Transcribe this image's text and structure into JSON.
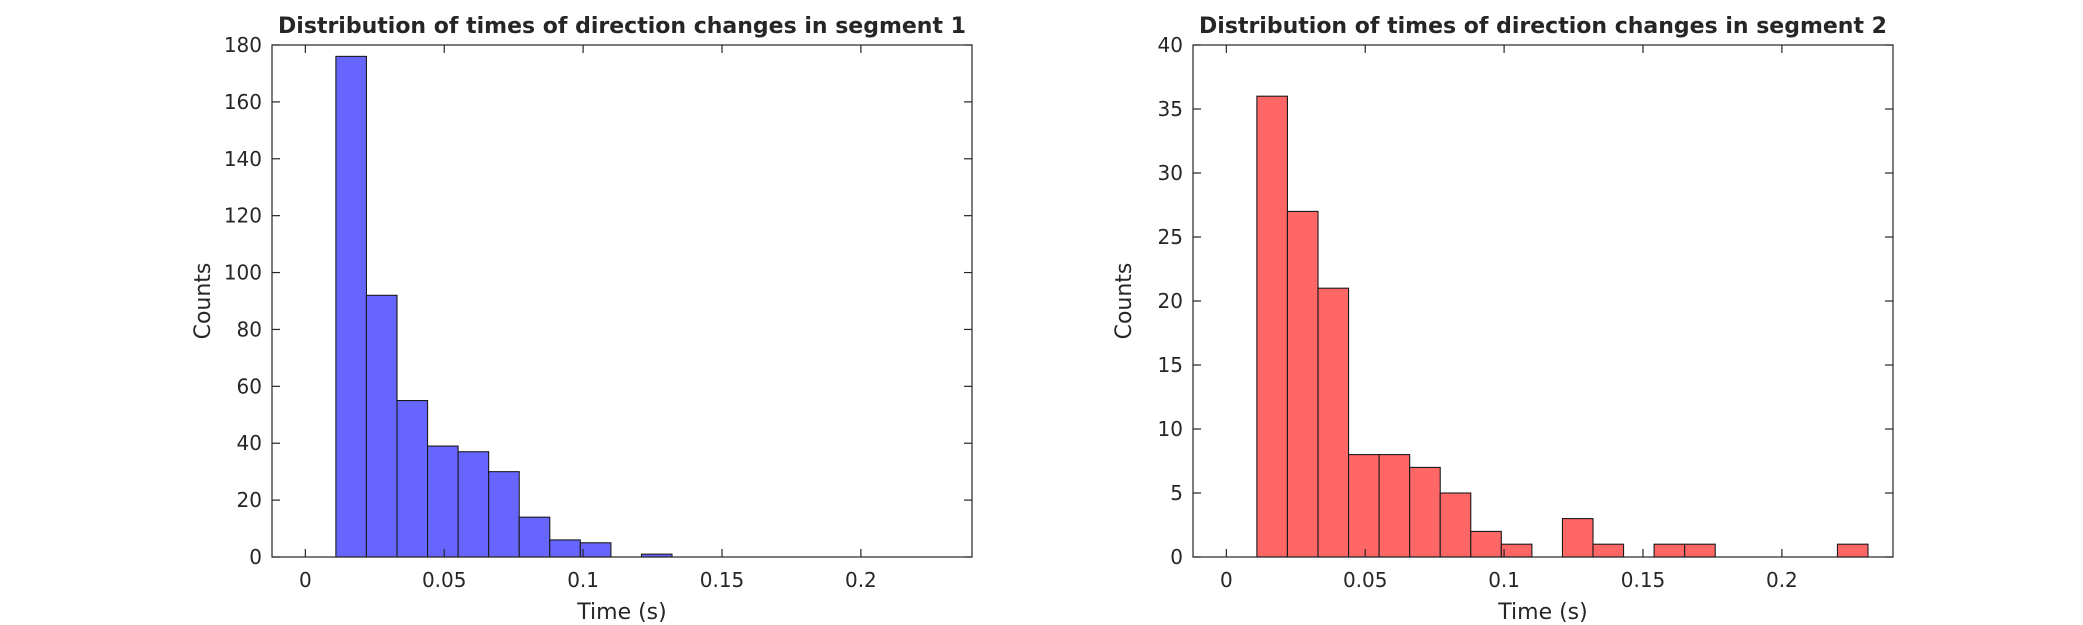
{
  "chart_data": [
    {
      "type": "bar",
      "title": "Distribution of times of direction changes in segment 1",
      "xlabel": "Time (s)",
      "ylabel": "Counts",
      "xlim": [
        -0.012,
        0.24
      ],
      "ylim": [
        0,
        180
      ],
      "xticks": [
        0,
        0.05,
        0.1,
        0.15,
        0.2
      ],
      "xtick_labels": [
        "0",
        "0.05",
        "0.1",
        "0.15",
        "0.2"
      ],
      "yticks": [
        0,
        20,
        40,
        60,
        80,
        100,
        120,
        140,
        160,
        180
      ],
      "ytick_labels": [
        "0",
        "20",
        "40",
        "60",
        "80",
        "100",
        "120",
        "140",
        "160",
        "180"
      ],
      "color": "#6666ff",
      "grid": false,
      "bin_width": 0.011,
      "bins": [
        {
          "x0": 0.011,
          "value": 176
        },
        {
          "x0": 0.022,
          "value": 92
        },
        {
          "x0": 0.033,
          "value": 55
        },
        {
          "x0": 0.044,
          "value": 39
        },
        {
          "x0": 0.055,
          "value": 37
        },
        {
          "x0": 0.066,
          "value": 30
        },
        {
          "x0": 0.077,
          "value": 14
        },
        {
          "x0": 0.088,
          "value": 6
        },
        {
          "x0": 0.099,
          "value": 5
        },
        {
          "x0": 0.121,
          "value": 1
        }
      ]
    },
    {
      "type": "bar",
      "title": "Distribution of times of direction changes in segment 2",
      "xlabel": "Time (s)",
      "ylabel": "Counts",
      "xlim": [
        -0.012,
        0.24
      ],
      "ylim": [
        0,
        40
      ],
      "xticks": [
        0,
        0.05,
        0.1,
        0.15,
        0.2
      ],
      "xtick_labels": [
        "0",
        "0.05",
        "0.1",
        "0.15",
        "0.2"
      ],
      "yticks": [
        0,
        5,
        10,
        15,
        20,
        25,
        30,
        35,
        40
      ],
      "ytick_labels": [
        "0",
        "5",
        "10",
        "15",
        "20",
        "25",
        "30",
        "35",
        "40"
      ],
      "color": "#ff6666",
      "grid": false,
      "bin_width": 0.011,
      "bins": [
        {
          "x0": 0.011,
          "value": 36
        },
        {
          "x0": 0.022,
          "value": 27
        },
        {
          "x0": 0.033,
          "value": 21
        },
        {
          "x0": 0.044,
          "value": 8
        },
        {
          "x0": 0.055,
          "value": 8
        },
        {
          "x0": 0.066,
          "value": 7
        },
        {
          "x0": 0.077,
          "value": 5
        },
        {
          "x0": 0.088,
          "value": 2
        },
        {
          "x0": 0.099,
          "value": 1
        },
        {
          "x0": 0.121,
          "value": 3
        },
        {
          "x0": 0.132,
          "value": 1
        },
        {
          "x0": 0.154,
          "value": 1
        },
        {
          "x0": 0.165,
          "value": 1
        },
        {
          "x0": 0.22,
          "value": 1
        }
      ]
    }
  ]
}
